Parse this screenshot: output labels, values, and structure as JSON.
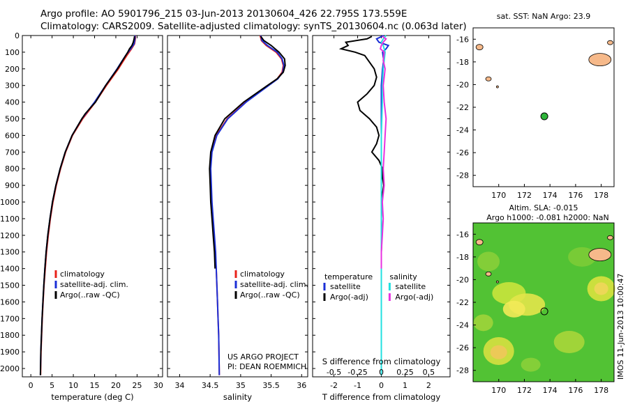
{
  "title_line1": "Argo profile: AO 5901796_215 03-Jun-2013 20130604_426 22.795S 173.559E",
  "title_line2": "Climatology: CARS2009. Satellite-adjusted climatology: synTS_20130604.nc (0.063d later)",
  "colors": {
    "climatology": "#e8221a",
    "satellite": "#1b2fd6",
    "argo": "#000000",
    "cyan": "#22e0e0",
    "magenta": "#e832e0",
    "land": "#f6b98a",
    "marker": "#2eb53a"
  },
  "depth_axis": {
    "min": 0,
    "max": 2050,
    "ticks": [
      0,
      100,
      200,
      300,
      400,
      500,
      600,
      700,
      800,
      900,
      1000,
      1100,
      1200,
      1300,
      1400,
      1500,
      1600,
      1700,
      1800,
      1900,
      2000
    ]
  },
  "chart_data": [
    {
      "type": "line",
      "name": "temperature",
      "xlabel": "temperature (deg C)",
      "xlim": [
        -2,
        31
      ],
      "xticks": [
        0,
        5,
        10,
        15,
        20,
        25,
        30
      ],
      "legend": [
        "climatology",
        "satellite-adj. clim.",
        "Argo(..raw -QC)"
      ],
      "series": [
        {
          "name": "climatology",
          "depth": [
            0,
            20,
            50,
            80,
            120,
            160,
            200,
            300,
            400,
            500,
            600,
            700,
            800,
            900,
            1000,
            1100,
            1200,
            1300,
            1400,
            1500,
            1600,
            1700,
            1800,
            1900,
            2040
          ],
          "values": [
            24.6,
            24.6,
            24.4,
            23.7,
            22.6,
            21.6,
            20.6,
            17.8,
            15.2,
            12.2,
            9.8,
            8.2,
            7.0,
            6.0,
            5.2,
            4.6,
            4.1,
            3.7,
            3.4,
            3.1,
            2.9,
            2.7,
            2.55,
            2.4,
            2.3
          ]
        },
        {
          "name": "satellite-adj. clim.",
          "depth": [
            0,
            20,
            50,
            80,
            120,
            160,
            200,
            300,
            400,
            500,
            600,
            700,
            800,
            900,
            1000,
            1100,
            1200,
            1300,
            1400,
            1500,
            1600,
            1700,
            1800,
            1900,
            2040
          ],
          "values": [
            24.5,
            24.5,
            24.3,
            23.5,
            22.3,
            21.3,
            20.3,
            17.6,
            15.0,
            12.0,
            9.7,
            8.1,
            6.9,
            5.9,
            5.1,
            4.5,
            4.0,
            3.6,
            3.3,
            3.05,
            2.85,
            2.65,
            2.5,
            2.35,
            2.25
          ]
        },
        {
          "name": "Argo",
          "depth": [
            5,
            20,
            40,
            60,
            80,
            100,
            150,
            200,
            300,
            400,
            470,
            500,
            600,
            700,
            800,
            900,
            1000,
            1100,
            1200,
            1300,
            1400,
            1500,
            1600,
            1700,
            1800,
            1900,
            2040
          ],
          "values": [
            24.4,
            24.3,
            24.1,
            23.8,
            23.2,
            22.8,
            21.6,
            20.4,
            17.6,
            15.2,
            12.8,
            12.0,
            9.7,
            8.1,
            6.9,
            5.9,
            5.1,
            4.5,
            4.0,
            3.6,
            3.3,
            3.05,
            2.85,
            2.65,
            2.5,
            2.35,
            2.25
          ]
        }
      ]
    },
    {
      "type": "line",
      "name": "salinity",
      "xlabel": "salinity",
      "xlim": [
        33.8,
        36.1
      ],
      "xticks": [
        34,
        34.5,
        35,
        35.5,
        36
      ],
      "legend": [
        "climatology",
        "satellite-adj. clim.",
        "Argo(..raw -QC)"
      ],
      "series": [
        {
          "name": "climatology",
          "depth": [
            0,
            30,
            60,
            100,
            140,
            180,
            220,
            260,
            300,
            400,
            500,
            600,
            700,
            800,
            900,
            1000,
            1100,
            1200,
            1300,
            1400,
            1500,
            1600,
            1700,
            1800,
            1900,
            2040
          ],
          "values": [
            35.32,
            35.34,
            35.42,
            35.58,
            35.67,
            35.7,
            35.68,
            35.6,
            35.45,
            35.08,
            34.78,
            34.6,
            34.52,
            34.5,
            34.51,
            34.52,
            34.54,
            34.56,
            34.58,
            34.6,
            34.61,
            34.62,
            34.63,
            34.64,
            34.645,
            34.65
          ]
        },
        {
          "name": "satellite-adj. clim.",
          "depth": [
            0,
            30,
            60,
            100,
            140,
            180,
            220,
            260,
            300,
            400,
            500,
            600,
            700,
            800,
            900,
            1000,
            1100,
            1200,
            1300,
            1400,
            1500,
            1600,
            1700,
            1800,
            1900,
            2040
          ],
          "values": [
            35.33,
            35.35,
            35.44,
            35.6,
            35.68,
            35.71,
            35.69,
            35.61,
            35.46,
            35.09,
            34.79,
            34.61,
            34.53,
            34.51,
            34.52,
            34.53,
            34.55,
            34.57,
            34.59,
            34.6,
            34.61,
            34.62,
            34.63,
            34.64,
            34.645,
            34.65
          ]
        },
        {
          "name": "Argo",
          "depth": [
            5,
            30,
            60,
            100,
            140,
            180,
            220,
            260,
            300,
            400,
            500,
            600,
            700,
            800,
            900,
            1000,
            1100,
            1200,
            1300,
            1400
          ],
          "values": [
            35.33,
            35.38,
            35.5,
            35.63,
            35.72,
            35.73,
            35.7,
            35.6,
            35.44,
            35.05,
            34.74,
            34.58,
            34.51,
            34.49,
            34.5,
            34.51,
            34.53,
            34.55,
            34.57,
            34.58
          ]
        }
      ],
      "annotation": [
        "US ARGO PROJECT",
        "PI: DEAN ROEMMICH"
      ]
    },
    {
      "type": "line",
      "name": "difference",
      "xlabel_top": "S difference from climatology",
      "xlabel": "T difference from climatology",
      "xlim": [
        -2.9,
        2.9
      ],
      "xticks_T": [
        -2,
        -1,
        0,
        1,
        2
      ],
      "xticks_S": [
        -0.5,
        -0.25,
        0,
        0.25,
        0.5
      ],
      "legend_titles": [
        "temperature",
        "salinity"
      ],
      "legend": [
        "satellite",
        "Argo(-adj)",
        "satellite",
        "Argo(-adj)"
      ],
      "series": [
        {
          "name": "T satellite",
          "depth": [
            0,
            20,
            40,
            60,
            80,
            100,
            150,
            200,
            300,
            400,
            600,
            800,
            1000,
            1200,
            1400,
            1600,
            1800,
            2040
          ],
          "values": [
            0.1,
            -0.2,
            -0.1,
            0.3,
            0.2,
            0.05,
            0.1,
            0.05,
            0.0,
            0.0,
            0.0,
            0.0,
            0.0,
            0.0,
            0.0,
            0.0,
            0.0,
            0.0
          ]
        },
        {
          "name": "T Argo",
          "depth": [
            5,
            20,
            40,
            60,
            80,
            100,
            120,
            160,
            200,
            250,
            300,
            350,
            400,
            450,
            500,
            550,
            600,
            650,
            700,
            750,
            800,
            850,
            900,
            950,
            1000,
            1100,
            1200,
            1300,
            1400
          ],
          "values": [
            -0.4,
            -0.6,
            -1.5,
            -1.4,
            -1.7,
            -1.1,
            -0.7,
            -0.5,
            -0.3,
            -0.2,
            -0.3,
            -0.6,
            -1.0,
            -0.9,
            -0.5,
            -0.2,
            -0.1,
            -0.2,
            -0.4,
            -0.1,
            0.05,
            0.05,
            0.1,
            0.05,
            0.02,
            0.0,
            0.02,
            0.0,
            0.0
          ]
        },
        {
          "name": "S satellite",
          "depth": [
            0,
            20,
            40,
            60,
            80,
            100,
            150,
            200,
            300,
            400,
            600,
            800,
            1000,
            1200,
            1400,
            1600,
            1800,
            2040
          ],
          "values": [
            0.05,
            0.02,
            0.0,
            0.02,
            0.03,
            0.04,
            0.03,
            0.02,
            0.01,
            0.01,
            0.0,
            0.0,
            0.0,
            0.0,
            0.0,
            0.0,
            0.0,
            0.0
          ]
        },
        {
          "name": "S Argo",
          "depth": [
            5,
            20,
            40,
            60,
            80,
            100,
            150,
            200,
            250,
            300,
            400,
            500,
            600,
            700,
            800,
            900,
            1000,
            1100,
            1200,
            1300,
            1400
          ],
          "values": [
            0.01,
            0.05,
            0.02,
            0.0,
            -0.01,
            0.03,
            0.02,
            0.04,
            0.03,
            0.02,
            0.03,
            0.05,
            0.04,
            0.03,
            0.02,
            0.03,
            0.01,
            0.02,
            0.01,
            0.0,
            0.0
          ]
        }
      ]
    },
    {
      "type": "map",
      "name": "sst-map",
      "title": "sat. SST: NaN Argo: 23.9",
      "xlim": [
        168,
        179
      ],
      "ylim": [
        -29,
        -15
      ],
      "xticks": [
        170,
        172,
        174,
        176,
        178
      ],
      "yticks": [
        -16,
        -18,
        -20,
        -22,
        -24,
        -26,
        -28
      ],
      "marker": {
        "lon": 173.56,
        "lat": -22.8
      }
    },
    {
      "type": "heatmap",
      "name": "sla-map",
      "title_line1": "Altim. SLA: -0.015",
      "title_line2": "Argo h1000: -0.081 h2000: NaN",
      "xlim": [
        168,
        179
      ],
      "ylim": [
        -29,
        -15
      ],
      "xticks": [
        170,
        172,
        174,
        176,
        178
      ],
      "yticks": [
        -16,
        -18,
        -20,
        -22,
        -24,
        -26,
        -28
      ],
      "marker": {
        "lon": 173.56,
        "lat": -22.8
      },
      "side_label": "IMOS 11-Jun-2013 10:00:47"
    }
  ]
}
